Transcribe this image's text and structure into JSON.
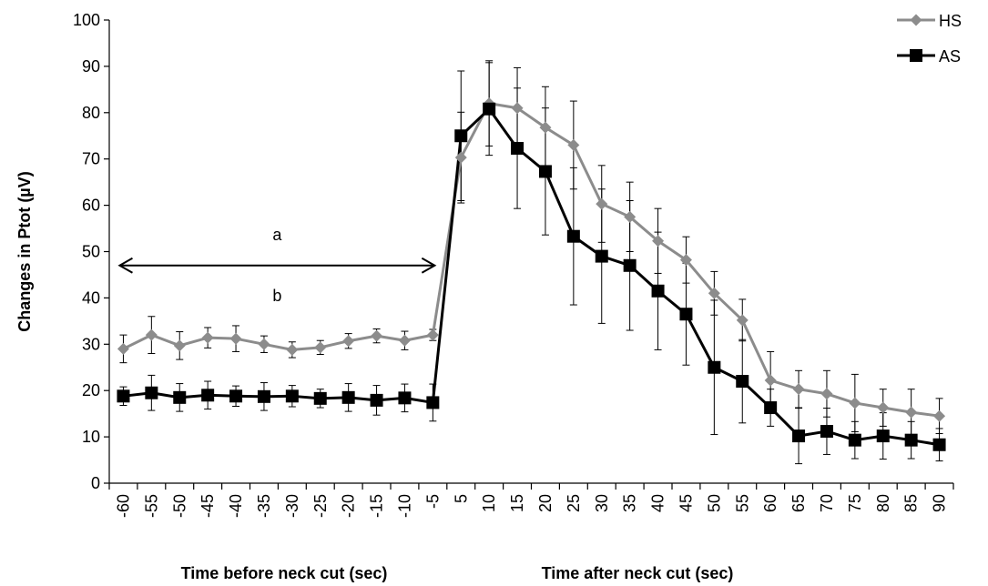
{
  "chart_data": {
    "type": "line",
    "title": "",
    "ylabel": "Changes in Ptot (µV)",
    "xlabel_left": "Time before neck cut (sec)",
    "xlabel_right": "Time after neck cut (sec)",
    "ylim": [
      0,
      100
    ],
    "yticks": [
      0,
      10,
      20,
      30,
      40,
      50,
      60,
      70,
      80,
      90,
      100
    ],
    "categories": [
      "-60",
      "-55",
      "-50",
      "-45",
      "-40",
      "-35",
      "-30",
      "-25",
      "-20",
      "-15",
      "-10",
      "-5",
      "5",
      "10",
      "15",
      "20",
      "25",
      "30",
      "35",
      "40",
      "45",
      "50",
      "55",
      "60",
      "65",
      "70",
      "75",
      "80",
      "85",
      "90"
    ],
    "grid": false,
    "legend_position": "top-right",
    "series": [
      {
        "name": "HS",
        "color": "#8c8c8c",
        "marker": "diamond",
        "values": [
          29.0,
          32.0,
          29.7,
          31.4,
          31.2,
          30.0,
          28.8,
          29.3,
          30.7,
          31.8,
          30.8,
          32.0,
          70.3,
          82.0,
          81.0,
          76.8,
          73.0,
          60.3,
          57.5,
          52.3,
          48.2,
          41.0,
          35.2,
          22.2,
          20.3,
          19.3,
          17.3,
          16.3,
          15.3,
          14.5
        ],
        "errors": [
          3.0,
          4.0,
          3.0,
          2.2,
          2.8,
          1.8,
          1.7,
          1.5,
          1.6,
          1.5,
          2.0,
          1.2,
          9.8,
          9.2,
          8.7,
          8.8,
          9.5,
          8.3,
          7.5,
          7.0,
          5.0,
          4.7,
          4.5,
          6.2,
          4.0,
          5.0,
          6.2,
          4.0,
          5.0,
          3.8
        ]
      },
      {
        "name": "AS",
        "color": "#000000",
        "marker": "square",
        "values": [
          18.8,
          19.5,
          18.5,
          19.0,
          18.8,
          18.7,
          18.8,
          18.3,
          18.5,
          17.9,
          18.4,
          17.4,
          75.0,
          80.8,
          72.3,
          67.3,
          53.3,
          49.0,
          47.0,
          41.5,
          36.5,
          25.0,
          22.0,
          16.3,
          10.2,
          11.2,
          9.3,
          10.2,
          9.3,
          8.3
        ],
        "errors": [
          2.0,
          3.8,
          3.0,
          3.0,
          2.2,
          3.0,
          2.3,
          2.0,
          3.0,
          3.2,
          3.0,
          4.0,
          14.0,
          10.0,
          13.0,
          13.7,
          14.8,
          14.5,
          14.0,
          12.7,
          11.0,
          14.5,
          9.0,
          4.0,
          6.0,
          5.0,
          4.0,
          5.0,
          4.0,
          3.5
        ]
      }
    ],
    "annotations": [
      {
        "text": "a"
      },
      {
        "text": "b"
      }
    ],
    "double_arrow_x_span": [
      "-60",
      "-5"
    ],
    "double_arrow_y": 47
  }
}
